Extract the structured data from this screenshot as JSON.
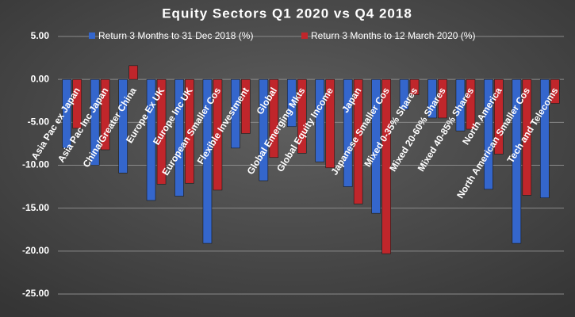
{
  "chart_data": {
    "type": "bar",
    "title": "Equity Sectors Q1 2020 vs Q4 2018",
    "categories": [
      "Asia Pac ex Japan",
      "Asia Pac Inc Japan",
      "China/Greater China",
      "Europe Ex UK",
      "Europe Inc UK",
      "European Smaller Cos",
      "Flexible Investment",
      "Global",
      "Global Emerging Mkts",
      "Global Equity Income",
      "Japan",
      "Japanese Smaller Cos",
      "Mixed 0-35% Shares",
      "Mixed 20-60% Shares",
      "Mixed 40-85% Shares",
      "North America",
      "North American Smaller Cos",
      "Tech and Telecoms"
    ],
    "series": [
      {
        "name": "Return 3 Months to 31 Dec 2018 (%)",
        "color": "#3466cc",
        "values": [
          -8.0,
          -10.0,
          -10.9,
          -14.1,
          -13.6,
          -19.1,
          -8.0,
          -11.8,
          -5.5,
          -9.6,
          -12.5,
          -15.6,
          -3.5,
          -4.5,
          -6.0,
          -12.8,
          -19.1,
          -13.8
        ]
      },
      {
        "name": "Return 3 Months to 12 March 2020 (%)",
        "color": "#c0262b",
        "values": [
          -5.7,
          -8.2,
          1.6,
          -12.2,
          -12.1,
          -12.9,
          -6.3,
          -9.1,
          -8.6,
          -10.3,
          -14.5,
          -20.3,
          -1.8,
          -4.5,
          -5.8,
          -8.7,
          -13.5,
          -2.8
        ]
      }
    ],
    "ylim": [
      -25,
      5
    ],
    "yticks": [
      {
        "value": 5,
        "label": "5.00"
      },
      {
        "value": 0,
        "label": "0.00"
      },
      {
        "value": -5,
        "label": "-5.00"
      },
      {
        "value": -10,
        "label": "-10.00"
      },
      {
        "value": -15,
        "label": "-15.00"
      },
      {
        "value": -20,
        "label": "-20.00"
      },
      {
        "value": -25,
        "label": "-25.00"
      }
    ],
    "grid": true
  }
}
